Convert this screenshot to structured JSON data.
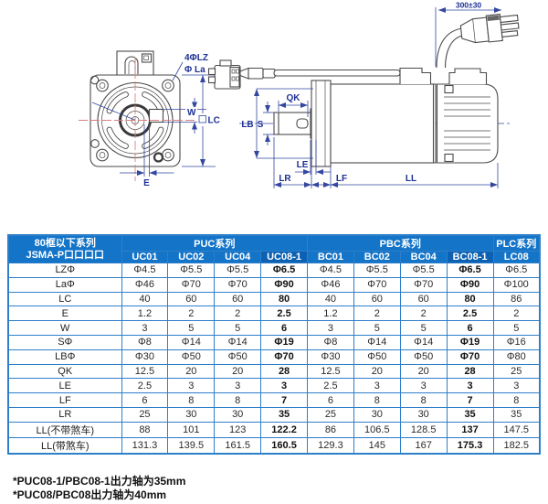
{
  "diagram": {
    "front_view": {
      "hole_label": "4ΦLZ",
      "pilot_label": "Φ La",
      "width_label": "W",
      "frame_label": "LC",
      "offset_label": "E"
    },
    "side_view": {
      "key_length_label": "QK",
      "pilot_dia_label": "LB",
      "shaft_label": "S",
      "le_label": "LE",
      "lr_label": "LR",
      "lf_label": "LF",
      "ll_label": "LL",
      "cable_length_label": "300±30"
    }
  },
  "table": {
    "corner_header": {
      "line1": "80框以下系列",
      "line2": "JSMA-P口口口口"
    },
    "groups": [
      {
        "label": "PUC系列",
        "span": 4
      },
      {
        "label": "PBC系列",
        "span": 4
      },
      {
        "label": "PLC系列",
        "span": 1
      }
    ],
    "columns": [
      "UC01",
      "UC02",
      "UC04",
      "UC08-1",
      "BC01",
      "BC02",
      "BC04",
      "BC08-1",
      "LC08"
    ],
    "emphasized_columns": [
      "UC08-1",
      "BC08-1"
    ],
    "rows": [
      {
        "label": "LZΦ",
        "values": [
          "Φ4.5",
          "Φ5.5",
          "Φ5.5",
          "Φ6.5",
          "Φ4.5",
          "Φ5.5",
          "Φ5.5",
          "Φ6.5",
          "Φ6.5"
        ]
      },
      {
        "label": "LaΦ",
        "values": [
          "Φ46",
          "Φ70",
          "Φ70",
          "Φ90",
          "Φ46",
          "Φ70",
          "Φ70",
          "Φ90",
          "Φ100"
        ]
      },
      {
        "label": "LC",
        "values": [
          "40",
          "60",
          "60",
          "80",
          "40",
          "60",
          "60",
          "80",
          "86"
        ]
      },
      {
        "label": "E",
        "values": [
          "1.2",
          "2",
          "2",
          "2.5",
          "1.2",
          "2",
          "2",
          "2.5",
          "2"
        ]
      },
      {
        "label": "W",
        "values": [
          "3",
          "5",
          "5",
          "6",
          "3",
          "5",
          "5",
          "6",
          "5"
        ]
      },
      {
        "label": "SΦ",
        "values": [
          "Φ8",
          "Φ14",
          "Φ14",
          "Φ19",
          "Φ8",
          "Φ14",
          "Φ14",
          "Φ19",
          "Φ16"
        ]
      },
      {
        "label": "LBΦ",
        "values": [
          "Φ30",
          "Φ50",
          "Φ50",
          "Φ70",
          "Φ30",
          "Φ50",
          "Φ50",
          "Φ70",
          "Φ80"
        ]
      },
      {
        "label": "QK",
        "values": [
          "12.5",
          "20",
          "20",
          "28",
          "12.5",
          "20",
          "20",
          "28",
          "25"
        ]
      },
      {
        "label": "LE",
        "values": [
          "2.5",
          "3",
          "3",
          "3",
          "2.5",
          "3",
          "3",
          "3",
          "3"
        ]
      },
      {
        "label": "LF",
        "values": [
          "6",
          "8",
          "8",
          "7",
          "6",
          "8",
          "8",
          "7",
          "8"
        ]
      },
      {
        "label": "LR",
        "values": [
          "25",
          "30",
          "30",
          "35",
          "25",
          "30",
          "30",
          "35",
          "35"
        ]
      },
      {
        "label": "LL(不带煞车)",
        "values": [
          "88",
          "101",
          "123",
          "122.2",
          "86",
          "106.5",
          "128.5",
          "137",
          "147.5"
        ]
      },
      {
        "label": "LL(带煞车)",
        "values": [
          "131.3",
          "139.5",
          "161.5",
          "160.5",
          "129.3",
          "145",
          "167",
          "175.3",
          "182.5"
        ]
      }
    ]
  },
  "footnotes": [
    "*PUC08-1/PBC08-1出力轴为35mm",
    "*PUC08/PBC08出力轴为40mm"
  ],
  "colors": {
    "header_blue": "#1474c8",
    "header_blue_dark": "#0d61b2",
    "border_blue": "#2e7fc9",
    "dim_blue": "#33479f",
    "dim_text": "#1d3094",
    "line_dark": "#4a4a4a",
    "centerline_red": "#d98080"
  }
}
